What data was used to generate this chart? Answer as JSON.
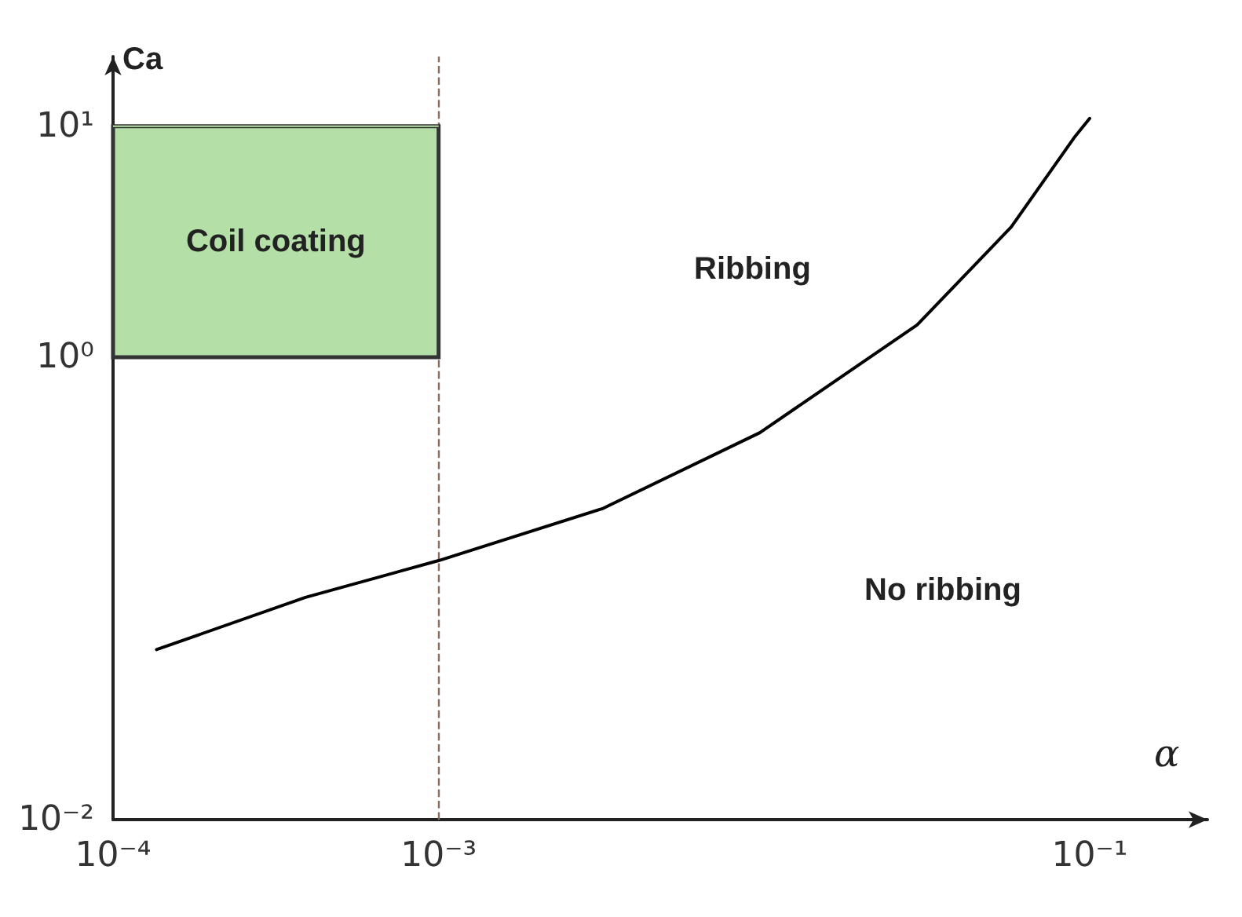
{
  "chart_data": {
    "type": "line",
    "xlabel": "α",
    "ylabel": "Ca",
    "log": "xy",
    "grid": false,
    "legend": false,
    "marker": "none",
    "line_style": "solid",
    "xlim": [
      0.0001,
      0.23
    ],
    "ylim": [
      0.01,
      20
    ],
    "xticks": [
      {
        "value": 0.0001,
        "label": "10⁻⁴"
      },
      {
        "value": 0.001,
        "label": "10⁻³"
      },
      {
        "value": 0.1,
        "label": "10⁻¹"
      }
    ],
    "yticks": [
      {
        "value": 0.01,
        "label": "10⁻²"
      },
      {
        "value": 1,
        "label": "10⁰"
      },
      {
        "value": 10,
        "label": "10¹"
      }
    ],
    "series": [
      {
        "color": "#000000",
        "x": [
          0.000136,
          0.00039,
          0.001,
          0.0032,
          0.0097,
          0.0295,
          0.0574,
          0.0895,
          0.1
        ],
        "values": [
          0.0544,
          0.0915,
          0.132,
          0.222,
          0.472,
          1.38,
          3.66,
          8.9,
          10.8
        ]
      },
      {
        "name": "Coil coating",
        "color": "#b4e0a8",
        "x": [
          0.0001,
          0.001
        ],
        "values": [
          10,
          10
        ],
        "lower": [
          1,
          1
        ],
        "upper": [
          10,
          10
        ]
      }
    ],
    "ref_lines": [
      {
        "axis": "x",
        "value": 0.001,
        "line_style": "dashed",
        "color": "#8a6a5a"
      }
    ],
    "annotations": [
      "Ribbing",
      "No ribbing"
    ]
  }
}
